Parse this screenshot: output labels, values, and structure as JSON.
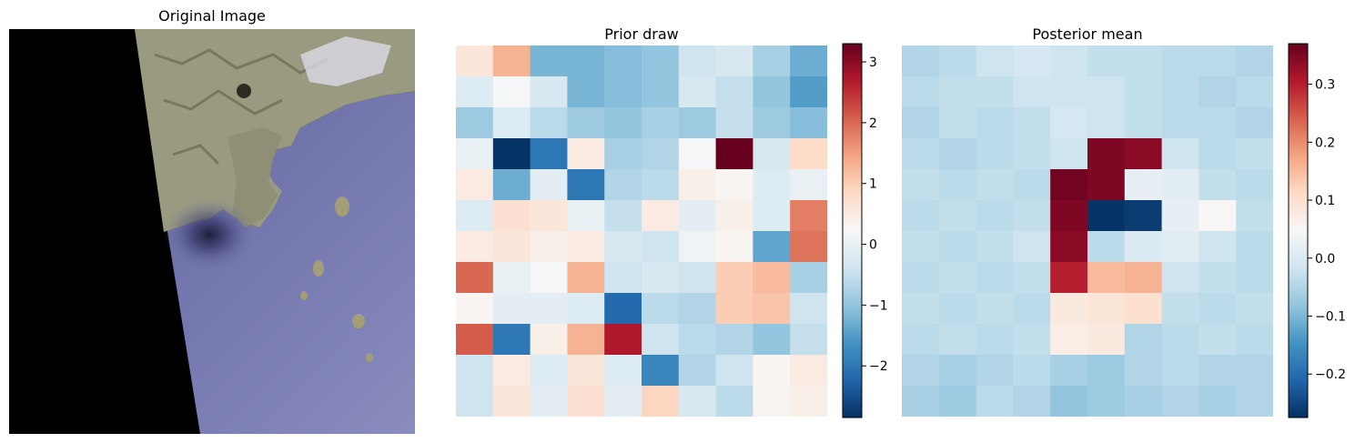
{
  "panels": [
    {
      "title": "Original Image"
    },
    {
      "title": "Prior draw"
    },
    {
      "title": "Posterior mean"
    }
  ],
  "colors": {
    "colormap": "RdBu_r",
    "cmap_stops": [
      "#053061",
      "#2166ac",
      "#4393c3",
      "#92c5de",
      "#d1e5f0",
      "#f7f7f7",
      "#fddbc7",
      "#f4a582",
      "#d6604d",
      "#b2182b",
      "#67001f"
    ],
    "land": "#9a9a80",
    "sea": "#6f72a8",
    "no_data": "#000000"
  },
  "chart_data": [
    {
      "type": "image",
      "title": "Original Image",
      "description_features": [
        "black no-data wedge on left",
        "land with mountains at top",
        "dark vortex over sea",
        "small islands"
      ]
    },
    {
      "type": "heatmap",
      "title": "Prior draw",
      "colorbar": {
        "vmin": -2.85,
        "vmax": 3.3,
        "ticks": [
          -2,
          -1,
          0,
          1,
          2,
          3
        ],
        "tick_labels": [
          "−2",
          "−1",
          "0",
          "1",
          "2",
          "3"
        ]
      },
      "grid_values": [
        [
          0.6,
          1.3,
          -1.2,
          -1.2,
          -1.1,
          -1.0,
          -0.4,
          -0.3,
          -0.8,
          -1.3
        ],
        [
          -0.2,
          0.2,
          -0.3,
          -1.2,
          -1.1,
          -1.0,
          -0.3,
          -0.5,
          -1.0,
          -1.5
        ],
        [
          -0.9,
          -0.2,
          -0.6,
          -0.9,
          -1.0,
          -0.8,
          -0.9,
          -0.5,
          -0.9,
          -1.1
        ],
        [
          0.0,
          -2.8,
          -2.0,
          0.5,
          -0.8,
          -0.7,
          0.2,
          3.3,
          -0.3,
          0.8
        ],
        [
          0.5,
          -1.3,
          -0.1,
          -2.0,
          -0.7,
          -0.6,
          0.4,
          0.3,
          -0.2,
          0.0
        ],
        [
          -0.2,
          0.7,
          0.6,
          0.0,
          -0.5,
          0.5,
          -0.1,
          0.4,
          -0.2,
          1.8
        ],
        [
          0.5,
          0.6,
          0.4,
          0.5,
          -0.3,
          -0.4,
          0.1,
          0.3,
          -1.4,
          1.9
        ],
        [
          2.0,
          0.0,
          0.2,
          1.3,
          -0.4,
          -0.3,
          -0.4,
          1.0,
          1.2,
          -0.8
        ],
        [
          0.3,
          -0.1,
          -0.1,
          -0.2,
          -2.2,
          -0.6,
          -0.7,
          1.0,
          1.1,
          -0.4
        ],
        [
          2.1,
          -2.0,
          0.4,
          1.3,
          2.7,
          -0.4,
          -0.6,
          -0.7,
          -1.0,
          -0.5
        ],
        [
          -0.4,
          0.5,
          -0.2,
          0.6,
          -0.2,
          -1.8,
          -0.7,
          -0.4,
          0.3,
          0.5
        ],
        [
          -0.4,
          0.6,
          -0.1,
          0.7,
          -0.1,
          0.9,
          -0.3,
          -0.6,
          0.3,
          0.4
        ]
      ]
    },
    {
      "type": "heatmap",
      "title": "Posterior mean",
      "colorbar": {
        "vmin": -0.275,
        "vmax": 0.37,
        "ticks": [
          -0.2,
          -0.1,
          0.0,
          0.1,
          0.2,
          0.3
        ],
        "tick_labels": [
          "−0.2",
          "−0.1",
          "0.0",
          "0.1",
          "0.2",
          "0.3"
        ]
      },
      "grid_values": [
        [
          -0.05,
          -0.04,
          -0.02,
          -0.01,
          -0.02,
          -0.03,
          -0.03,
          -0.04,
          -0.04,
          -0.05
        ],
        [
          -0.04,
          -0.03,
          -0.03,
          -0.02,
          -0.02,
          -0.02,
          -0.03,
          -0.04,
          -0.05,
          -0.04
        ],
        [
          -0.05,
          -0.03,
          -0.04,
          -0.03,
          -0.01,
          -0.02,
          -0.03,
          -0.04,
          -0.04,
          -0.05
        ],
        [
          -0.04,
          -0.05,
          -0.04,
          -0.03,
          -0.02,
          0.35,
          0.34,
          -0.02,
          -0.04,
          -0.03
        ],
        [
          -0.03,
          -0.04,
          -0.03,
          -0.04,
          0.36,
          0.35,
          0.02,
          0.01,
          -0.03,
          -0.04
        ],
        [
          -0.04,
          -0.03,
          -0.04,
          -0.03,
          0.35,
          -0.27,
          -0.26,
          0.02,
          0.05,
          -0.03
        ],
        [
          -0.03,
          -0.04,
          -0.03,
          -0.02,
          0.34,
          -0.04,
          0.0,
          0.01,
          -0.02,
          -0.04
        ],
        [
          -0.04,
          -0.03,
          -0.04,
          -0.03,
          0.3,
          0.15,
          0.16,
          -0.02,
          -0.03,
          -0.04
        ],
        [
          -0.03,
          -0.04,
          -0.03,
          -0.04,
          0.08,
          0.09,
          0.1,
          -0.03,
          -0.04,
          -0.03
        ],
        [
          -0.04,
          -0.03,
          -0.04,
          -0.03,
          0.07,
          0.08,
          -0.05,
          -0.04,
          -0.03,
          -0.04
        ],
        [
          -0.05,
          -0.06,
          -0.05,
          -0.04,
          -0.06,
          -0.07,
          -0.05,
          -0.04,
          -0.05,
          -0.05
        ],
        [
          -0.06,
          -0.07,
          -0.04,
          -0.05,
          -0.08,
          -0.07,
          -0.06,
          -0.05,
          -0.06,
          -0.05
        ]
      ]
    }
  ]
}
